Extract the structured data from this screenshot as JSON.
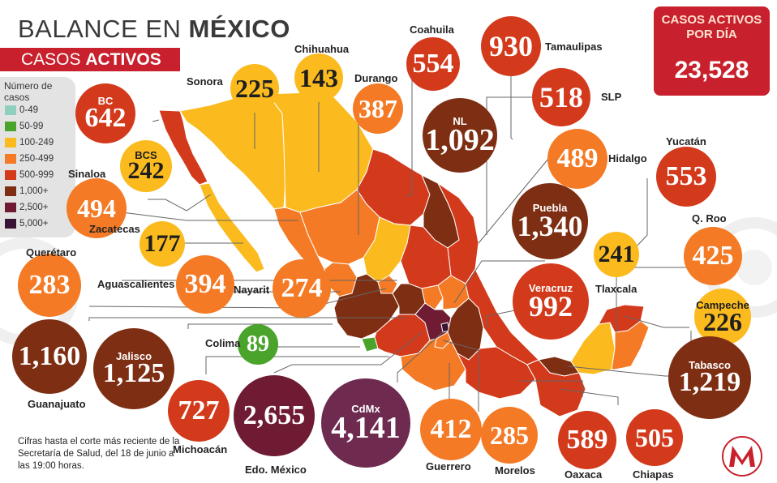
{
  "title": {
    "regular": "BALANCE EN ",
    "bold": "MÉXICO"
  },
  "subtitle": {
    "regular": "CASOS ",
    "bold": "ACTIVOS"
  },
  "legend": {
    "title": "Número de casos",
    "items": [
      {
        "label": "0-49",
        "color": "#8fcfc0"
      },
      {
        "label": "50-99",
        "color": "#4aa42b"
      },
      {
        "label": "100-249",
        "color": "#fbbb1f"
      },
      {
        "label": "250-499",
        "color": "#f47a25"
      },
      {
        "label": "500-999",
        "color": "#d33a1c"
      },
      {
        "label": "1,000+",
        "color": "#7e2e12"
      },
      {
        "label": "2,500+",
        "color": "#6e1b33"
      },
      {
        "label": "5,000+",
        "color": "#3a1434"
      }
    ]
  },
  "active_per_day": {
    "label_line1": "CASOS ACTIVOS",
    "label_line2": "POR DÍA",
    "value": "23,528"
  },
  "states": [
    {
      "id": "bc",
      "name": "BC",
      "value": "642",
      "color": "#d33a1c"
    },
    {
      "id": "sonora",
      "name": "Sonora",
      "value": "225",
      "color": "#fbbb1f"
    },
    {
      "id": "chihuahua",
      "name": "Chihuahua",
      "value": "143",
      "color": "#fbbb1f"
    },
    {
      "id": "durango",
      "name": "Durango",
      "value": "387",
      "color": "#f47a25"
    },
    {
      "id": "coahuila",
      "name": "Coahuila",
      "value": "554",
      "color": "#d33a1c"
    },
    {
      "id": "tamaulipas",
      "name": "Tamaulipas",
      "value": "930",
      "color": "#d33a1c"
    },
    {
      "id": "slp",
      "name": "SLP",
      "value": "518",
      "color": "#d33a1c"
    },
    {
      "id": "nl",
      "name": "NL",
      "value": "1,092",
      "color": "#7e2e12"
    },
    {
      "id": "bcs",
      "name": "BCS",
      "value": "242",
      "color": "#fbbb1f"
    },
    {
      "id": "hidalgo",
      "name": "Hidalgo",
      "value": "489",
      "color": "#f47a25"
    },
    {
      "id": "yucatan",
      "name": "Yucatán",
      "value": "553",
      "color": "#d33a1c"
    },
    {
      "id": "sinaloa",
      "name": "Sinaloa",
      "value": "494",
      "color": "#f47a25"
    },
    {
      "id": "puebla",
      "name": "Puebla",
      "value": "1,340",
      "color": "#7e2e12"
    },
    {
      "id": "zacatecas",
      "name": "Zacatecas",
      "value": "177",
      "color": "#fbbb1f"
    },
    {
      "id": "qroo",
      "name": "Q. Roo",
      "value": "425",
      "color": "#f47a25"
    },
    {
      "id": "tlaxcala",
      "name": "Tlaxcala",
      "value": "241",
      "color": "#fbbb1f"
    },
    {
      "id": "queretaro",
      "name": "Querétaro",
      "value": "283",
      "color": "#f47a25"
    },
    {
      "id": "aguascalientes",
      "name": "Aguascalientes",
      "value": "394",
      "color": "#f47a25"
    },
    {
      "id": "nayarit",
      "name": "Nayarit",
      "value": "274",
      "color": "#f47a25"
    },
    {
      "id": "veracruz",
      "name": "Veracruz",
      "value": "992",
      "color": "#d33a1c"
    },
    {
      "id": "campeche",
      "name": "Campeche",
      "value": "226",
      "color": "#fbbb1f"
    },
    {
      "id": "colima",
      "name": "Colima",
      "value": "89",
      "color": "#4aa42b"
    },
    {
      "id": "guanajuato",
      "name": "Guanajuato",
      "value": "1,160",
      "color": "#7e2e12"
    },
    {
      "id": "jalisco",
      "name": "Jalisco",
      "value": "1,125",
      "color": "#7e2e12"
    },
    {
      "id": "tabasco",
      "name": "Tabasco",
      "value": "1,219",
      "color": "#7e2e12"
    },
    {
      "id": "michoacan",
      "name": "Michoacán",
      "value": "727",
      "color": "#d33a1c"
    },
    {
      "id": "edomex",
      "name": "Edo. México",
      "value": "2,655",
      "color": "#6e1b33"
    },
    {
      "id": "cdmx",
      "name": "CdMx",
      "value": "4,141",
      "color": "#6e2a4f"
    },
    {
      "id": "guerrero",
      "name": "Guerrero",
      "value": "412",
      "color": "#f47a25"
    },
    {
      "id": "morelos",
      "name": "Morelos",
      "value": "285",
      "color": "#f47a25"
    },
    {
      "id": "oaxaca",
      "name": "Oaxaca",
      "value": "589",
      "color": "#d33a1c"
    },
    {
      "id": "chiapas",
      "name": "Chiapas",
      "value": "505",
      "color": "#d33a1c"
    }
  ],
  "footnote": "Cifras hasta el corte más reciente de la Secretaría de Salud, del 18 de junio a las 19:00 horas.",
  "logo": {
    "letter": "M",
    "color": "#c8202c"
  }
}
